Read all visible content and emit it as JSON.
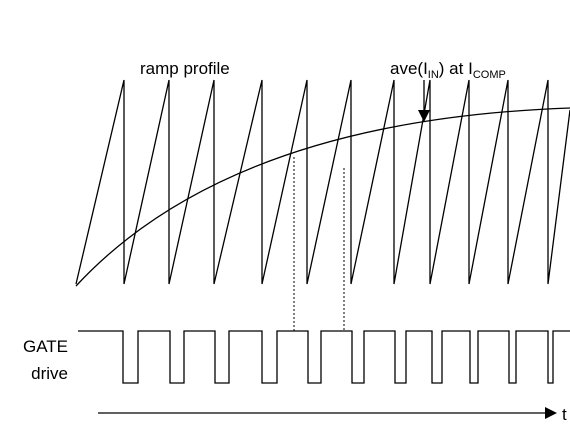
{
  "labels": {
    "ramp": "ramp profile",
    "ave_main": "ave(I",
    "ave_sub": "IN",
    "ave_mid": ") at I",
    "ave_sub2": "COMP",
    "gate1": "GATE",
    "gate2": "drive",
    "time": "t"
  },
  "colors": {
    "ink": "#000000",
    "background": "#ffffff"
  }
}
